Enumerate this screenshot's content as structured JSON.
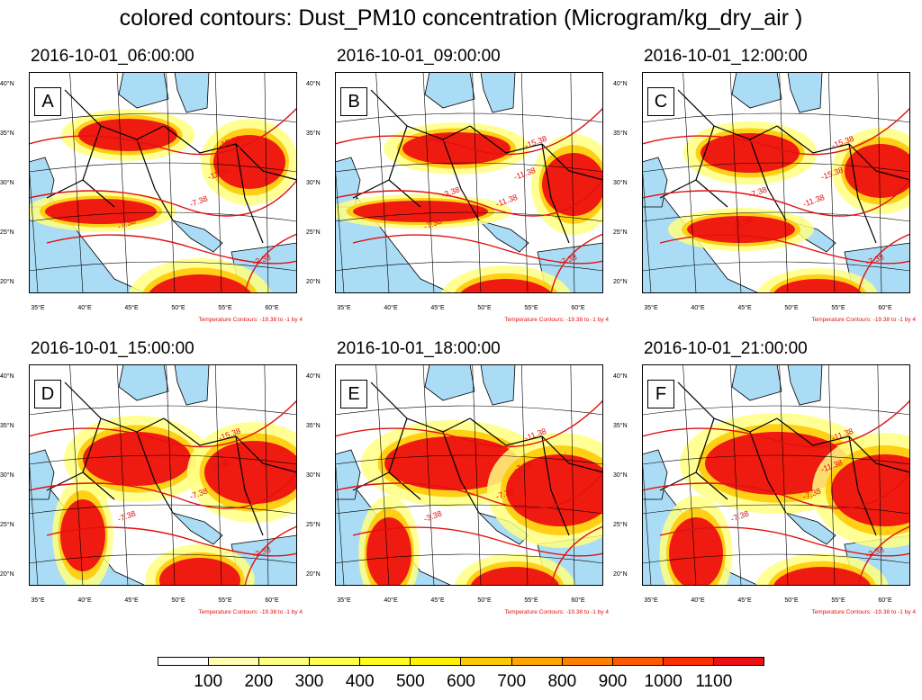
{
  "title": "colored contours: Dust_PM10 concentration (Microgram/kg_dry_air )",
  "temperature_note": "Temperature Contours: -19.38 to -1 by 4",
  "lat_labels": [
    "40°N",
    "35°N",
    "30°N",
    "25°N",
    "20°N"
  ],
  "lon_labels": [
    "35°E",
    "40°E",
    "45°E",
    "50°E",
    "55°E",
    "60°E"
  ],
  "colorbar": {
    "colors": [
      "#ffffff",
      "#ffffb3",
      "#ffff80",
      "#ffff4d",
      "#ffff1a",
      "#fff200",
      "#ffc800",
      "#ffa500",
      "#ff8000",
      "#ff5a00",
      "#ff3000",
      "#ee1010"
    ],
    "labels": [
      "100",
      "200",
      "300",
      "400",
      "500",
      "600",
      "700",
      "800",
      "900",
      "1000",
      "1100"
    ]
  },
  "panels": [
    {
      "letter": "A",
      "time": "2016-10-01_06:00:00",
      "contour_labels": [
        "-15.38",
        "-11.38",
        "-7.38",
        "-7.38",
        "-3.38"
      ]
    },
    {
      "letter": "B",
      "time": "2016-10-01_09:00:00",
      "contour_labels": [
        "-15.38",
        "-11.38",
        "-11.38",
        "-7.38",
        "-7.38",
        "-3.38"
      ]
    },
    {
      "letter": "C",
      "time": "2016-10-01_12:00:00",
      "contour_labels": [
        "-15.38",
        "-15.38",
        "-11.38",
        "-11.38",
        "-7.38",
        "-7.38"
      ]
    },
    {
      "letter": "D",
      "time": "2016-10-01_15:00:00",
      "contour_labels": [
        "-15.38",
        "-11.38",
        "-7.38",
        "-7.38",
        "-3.38"
      ]
    },
    {
      "letter": "E",
      "time": "2016-10-01_18:00:00",
      "contour_labels": [
        "-11.38",
        "-7.38",
        "-7.38",
        "-3.38"
      ]
    },
    {
      "letter": "F",
      "time": "2016-10-01_21:00:00",
      "contour_labels": [
        "-11.38",
        "-11.38",
        "-7.38",
        "-7.38",
        "-3.38"
      ]
    }
  ]
}
